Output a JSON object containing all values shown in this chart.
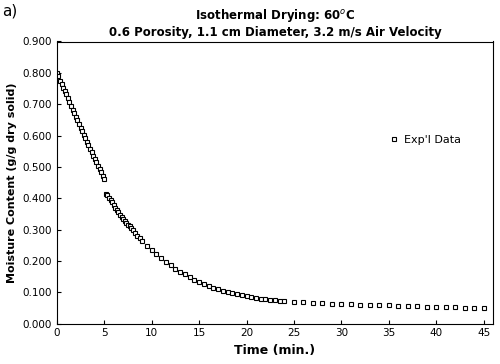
{
  "title_line1": "Isothermal Drying: 60ᵒC",
  "title_line2": "0.6 Porosity, 1.1 cm Diameter, 3.2 m/s Air Velocity",
  "xlabel": "Time (min.)",
  "ylabel": "Moisture Content (g/g dry solid)",
  "xlim": [
    0,
    46
  ],
  "ylim": [
    0.0,
    0.9
  ],
  "xticks": [
    0,
    5,
    10,
    15,
    20,
    25,
    30,
    35,
    40,
    45
  ],
  "yticks": [
    0.0,
    0.1,
    0.2,
    0.3,
    0.4,
    0.5,
    0.6,
    0.7,
    0.8,
    0.9
  ],
  "legend_label": "Exp'l Data",
  "marker": "s",
  "marker_color": "black",
  "marker_size": 3,
  "marker_facecolor": "white",
  "panel_label": "a)",
  "background_color": "#ffffff",
  "data_x": [
    0.0,
    0.17,
    0.33,
    0.5,
    0.67,
    0.83,
    1.0,
    1.17,
    1.33,
    1.5,
    1.67,
    1.83,
    2.0,
    2.17,
    2.33,
    2.5,
    2.67,
    2.83,
    3.0,
    3.17,
    3.33,
    3.5,
    3.67,
    3.83,
    4.0,
    4.17,
    4.33,
    4.5,
    4.67,
    4.83,
    5.0,
    5.17,
    5.33,
    5.5,
    5.67,
    5.83,
    6.0,
    6.17,
    6.33,
    6.5,
    6.67,
    6.83,
    7.0,
    7.17,
    7.33,
    7.5,
    7.67,
    7.83,
    8.0,
    8.25,
    8.5,
    8.75,
    9.0,
    9.5,
    10.0,
    10.5,
    11.0,
    11.5,
    12.0,
    12.5,
    13.0,
    13.5,
    14.0,
    14.5,
    15.0,
    15.5,
    16.0,
    16.5,
    17.0,
    17.5,
    18.0,
    18.5,
    19.0,
    19.5,
    20.0,
    20.5,
    21.0,
    21.5,
    22.0,
    22.5,
    23.0,
    23.5,
    24.0,
    25.0,
    26.0,
    27.0,
    28.0,
    29.0,
    30.0,
    31.0,
    32.0,
    33.0,
    34.0,
    35.0,
    36.0,
    37.0,
    38.0,
    39.0,
    40.0,
    41.0,
    42.0,
    43.0,
    44.0,
    45.0
  ],
  "data_y": [
    0.8,
    0.79,
    0.775,
    0.765,
    0.752,
    0.742,
    0.732,
    0.72,
    0.708,
    0.695,
    0.682,
    0.672,
    0.66,
    0.648,
    0.638,
    0.625,
    0.614,
    0.602,
    0.592,
    0.58,
    0.57,
    0.558,
    0.548,
    0.536,
    0.525,
    0.515,
    0.504,
    0.493,
    0.483,
    0.472,
    0.462,
    0.415,
    0.41,
    0.4,
    0.395,
    0.387,
    0.378,
    0.37,
    0.362,
    0.356,
    0.348,
    0.34,
    0.335,
    0.328,
    0.322,
    0.316,
    0.31,
    0.305,
    0.3,
    0.29,
    0.28,
    0.272,
    0.264,
    0.248,
    0.235,
    0.222,
    0.21,
    0.198,
    0.186,
    0.175,
    0.165,
    0.157,
    0.148,
    0.14,
    0.133,
    0.127,
    0.12,
    0.115,
    0.11,
    0.105,
    0.102,
    0.098,
    0.094,
    0.091,
    0.088,
    0.085,
    0.082,
    0.08,
    0.078,
    0.076,
    0.075,
    0.073,
    0.072,
    0.07,
    0.068,
    0.066,
    0.065,
    0.064,
    0.063,
    0.062,
    0.061,
    0.06,
    0.059,
    0.058,
    0.057,
    0.056,
    0.055,
    0.054,
    0.053,
    0.052,
    0.052,
    0.051,
    0.051,
    0.05
  ]
}
